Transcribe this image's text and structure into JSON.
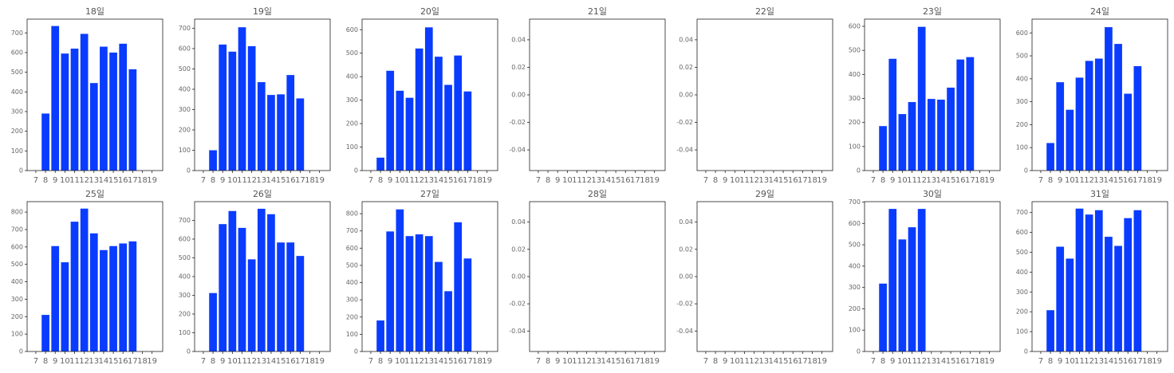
{
  "chart_data": [
    {
      "type": "bar",
      "title": "18일",
      "x": [
        8,
        9,
        10,
        11,
        12,
        13,
        14,
        15,
        16,
        17
      ],
      "values": [
        290,
        735,
        595,
        620,
        695,
        445,
        630,
        600,
        645,
        515
      ],
      "color": "#0a3cff",
      "xlim": [
        6.1,
        20.1
      ],
      "xticks": [
        7,
        8,
        9,
        10,
        11,
        12,
        13,
        14,
        15,
        16,
        17,
        18,
        19
      ],
      "ylim": [
        0,
        770
      ],
      "yticks": [
        0,
        100,
        200,
        300,
        400,
        500,
        600,
        700
      ]
    },
    {
      "type": "bar",
      "title": "19일",
      "x": [
        8,
        9,
        10,
        11,
        12,
        13,
        14,
        15,
        16,
        17
      ],
      "values": [
        100,
        620,
        585,
        705,
        612,
        435,
        372,
        375,
        470,
        355
      ],
      "color": "#0a3cff",
      "xlim": [
        6.1,
        20.1
      ],
      "xticks": [
        7,
        8,
        9,
        10,
        11,
        12,
        13,
        14,
        15,
        16,
        17,
        18,
        19
      ],
      "ylim": [
        0,
        745
      ],
      "yticks": [
        0,
        100,
        200,
        300,
        400,
        500,
        600,
        700
      ]
    },
    {
      "type": "bar",
      "title": "20일",
      "x": [
        8,
        9,
        10,
        11,
        12,
        13,
        14,
        15,
        16,
        17
      ],
      "values": [
        55,
        425,
        340,
        310,
        520,
        610,
        485,
        365,
        490,
        337
      ],
      "color": "#0a3cff",
      "xlim": [
        6.1,
        20.1
      ],
      "xticks": [
        7,
        8,
        9,
        10,
        11,
        12,
        13,
        14,
        15,
        16,
        17,
        18,
        19
      ],
      "ylim": [
        0,
        645
      ],
      "yticks": [
        0,
        100,
        200,
        300,
        400,
        500,
        600
      ]
    },
    {
      "type": "bar",
      "title": "21일",
      "x": [],
      "values": [],
      "color": "#0a3cff",
      "xlim": [
        6.1,
        20.1
      ],
      "xticks": [
        7,
        8,
        9,
        10,
        11,
        12,
        13,
        14,
        15,
        16,
        17,
        18,
        19
      ],
      "ylim": [
        -0.055,
        0.055
      ],
      "yticks": [
        -0.04,
        -0.02,
        {
          "value": 0,
          "label": "0.00"
        },
        0.02,
        0.04
      ]
    },
    {
      "type": "bar",
      "title": "22일",
      "x": [],
      "values": [],
      "color": "#0a3cff",
      "xlim": [
        6.1,
        20.1
      ],
      "xticks": [
        7,
        8,
        9,
        10,
        11,
        12,
        13,
        14,
        15,
        16,
        17,
        18,
        19
      ],
      "ylim": [
        -0.055,
        0.055
      ],
      "yticks": [
        -0.04,
        -0.02,
        {
          "value": 0,
          "label": "0.00"
        },
        0.02,
        0.04
      ]
    },
    {
      "type": "bar",
      "title": "23일",
      "x": [
        8,
        9,
        10,
        11,
        12,
        13,
        14,
        15,
        16,
        17
      ],
      "values": [
        185,
        465,
        235,
        285,
        598,
        298,
        295,
        345,
        462,
        472
      ],
      "color": "#0a3cff",
      "xlim": [
        6.1,
        20.1
      ],
      "xticks": [
        7,
        8,
        9,
        10,
        11,
        12,
        13,
        14,
        15,
        16,
        17,
        18,
        19
      ],
      "ylim": [
        0,
        630
      ],
      "yticks": [
        0,
        100,
        200,
        300,
        400,
        500,
        600
      ]
    },
    {
      "type": "bar",
      "title": "24일",
      "x": [
        8,
        9,
        10,
        11,
        12,
        13,
        14,
        15,
        16,
        17
      ],
      "values": [
        120,
        385,
        265,
        405,
        478,
        488,
        625,
        552,
        335,
        455
      ],
      "color": "#0a3cff",
      "xlim": [
        6.1,
        20.1
      ],
      "xticks": [
        7,
        8,
        9,
        10,
        11,
        12,
        13,
        14,
        15,
        16,
        17,
        18,
        19
      ],
      "ylim": [
        0,
        660
      ],
      "yticks": [
        0,
        100,
        200,
        300,
        400,
        500,
        600
      ]
    },
    {
      "type": "bar",
      "title": "25일",
      "x": [
        8,
        9,
        10,
        11,
        12,
        13,
        14,
        15,
        16,
        17
      ],
      "values": [
        210,
        605,
        512,
        745,
        820,
        678,
        582,
        605,
        620,
        632
      ],
      "color": "#0a3cff",
      "xlim": [
        6.1,
        20.1
      ],
      "xticks": [
        7,
        8,
        9,
        10,
        11,
        12,
        13,
        14,
        15,
        16,
        17,
        18,
        19
      ],
      "ylim": [
        0,
        860
      ],
      "yticks": [
        0,
        100,
        200,
        300,
        400,
        500,
        600,
        700,
        800
      ]
    },
    {
      "type": "bar",
      "title": "26일",
      "x": [
        8,
        9,
        10,
        11,
        12,
        13,
        14,
        15,
        16,
        17
      ],
      "values": [
        312,
        680,
        750,
        660,
        492,
        762,
        733,
        582,
        582,
        510
      ],
      "color": "#0a3cff",
      "xlim": [
        6.1,
        20.1
      ],
      "xticks": [
        7,
        8,
        9,
        10,
        11,
        12,
        13,
        14,
        15,
        16,
        17,
        18,
        19
      ],
      "ylim": [
        0,
        800
      ],
      "yticks": [
        0,
        100,
        200,
        300,
        400,
        500,
        600,
        700
      ]
    },
    {
      "type": "bar",
      "title": "27일",
      "x": [
        8,
        9,
        10,
        11,
        12,
        13,
        14,
        15,
        16,
        17
      ],
      "values": [
        180,
        697,
        825,
        670,
        680,
        670,
        520,
        350,
        750,
        540
      ],
      "color": "#0a3cff",
      "xlim": [
        6.1,
        20.1
      ],
      "xticks": [
        7,
        8,
        9,
        10,
        11,
        12,
        13,
        14,
        15,
        16,
        17,
        18,
        19
      ],
      "ylim": [
        0,
        870
      ],
      "yticks": [
        0,
        100,
        200,
        300,
        400,
        500,
        600,
        700,
        800
      ]
    },
    {
      "type": "bar",
      "title": "28일",
      "x": [],
      "values": [],
      "color": "#0a3cff",
      "xlim": [
        6.1,
        20.1
      ],
      "xticks": [
        7,
        8,
        9,
        10,
        11,
        12,
        13,
        14,
        15,
        16,
        17,
        18,
        19
      ],
      "ylim": [
        -0.055,
        0.055
      ],
      "yticks": [
        -0.04,
        -0.02,
        {
          "value": 0,
          "label": "0.00"
        },
        0.02,
        0.04
      ]
    },
    {
      "type": "bar",
      "title": "29일",
      "x": [],
      "values": [],
      "color": "#0a3cff",
      "xlim": [
        6.1,
        20.1
      ],
      "xticks": [
        7,
        8,
        9,
        10,
        11,
        12,
        13,
        14,
        15,
        16,
        17,
        18,
        19
      ],
      "ylim": [
        -0.055,
        0.055
      ],
      "yticks": [
        -0.04,
        -0.02,
        {
          "value": 0,
          "label": "0.00"
        },
        0.02,
        0.04
      ]
    },
    {
      "type": "bar",
      "title": "30일",
      "x": [
        8,
        9,
        10,
        11,
        12
      ],
      "values": [
        318,
        668,
        525,
        582,
        668
      ],
      "color": "#0a3cff",
      "xlim": [
        6.1,
        20.1
      ],
      "xticks": [
        7,
        8,
        9,
        10,
        11,
        12,
        13,
        14,
        15,
        16,
        17,
        18,
        19
      ],
      "ylim": [
        0,
        702
      ],
      "yticks": [
        0,
        100,
        200,
        300,
        400,
        500,
        600,
        700
      ]
    },
    {
      "type": "bar",
      "title": "31일",
      "x": [
        8,
        9,
        10,
        11,
        12,
        13,
        14,
        15,
        16,
        17
      ],
      "values": [
        208,
        528,
        468,
        720,
        690,
        712,
        578,
        532,
        672,
        712
      ],
      "color": "#0a3cff",
      "xlim": [
        6.1,
        20.1
      ],
      "xticks": [
        7,
        8,
        9,
        10,
        11,
        12,
        13,
        14,
        15,
        16,
        17,
        18,
        19
      ],
      "ylim": [
        0,
        755
      ],
      "yticks": [
        0,
        100,
        200,
        300,
        400,
        500,
        600,
        700
      ]
    }
  ]
}
